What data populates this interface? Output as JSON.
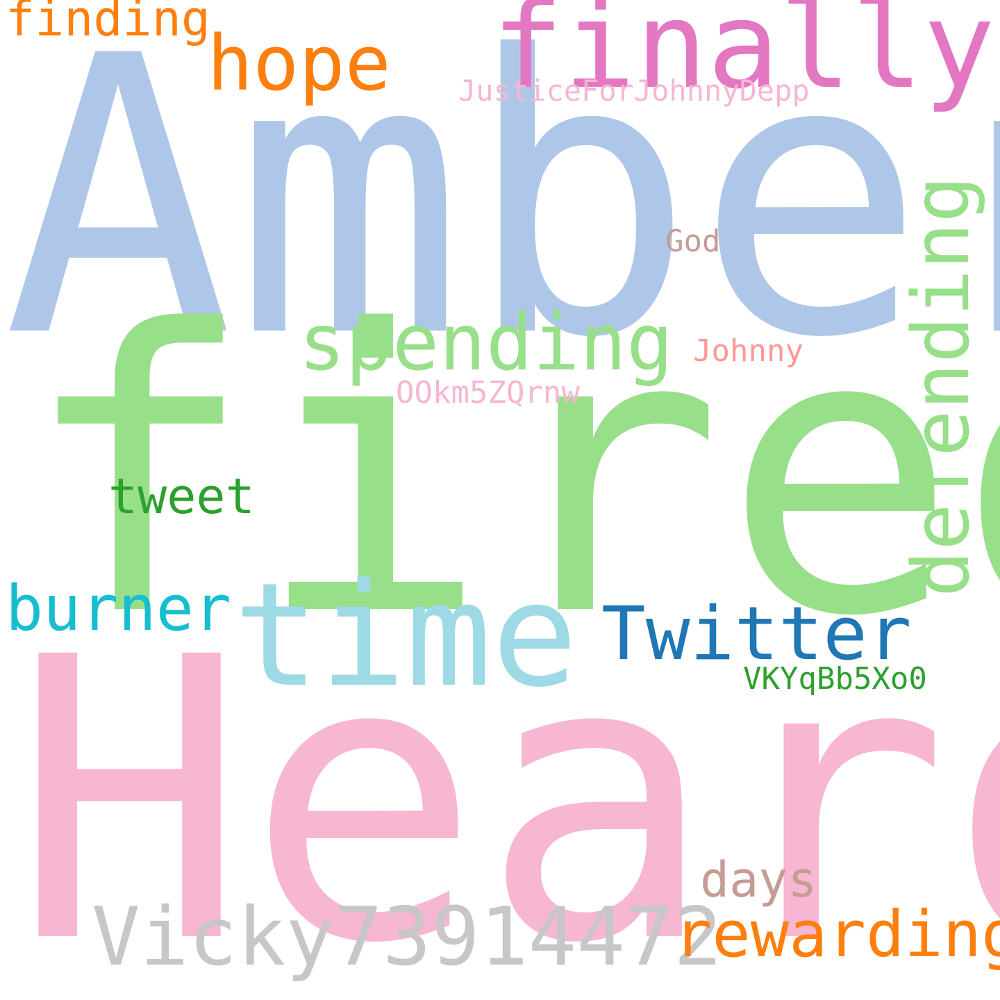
{
  "words": [
    {
      "text": "Amber",
      "color": "#aec7e8"
    },
    {
      "text": "fired",
      "color": "#98df8a"
    },
    {
      "text": "Heard",
      "color": "#f7b6d2"
    },
    {
      "text": "finally",
      "color": "#e377c2"
    },
    {
      "text": "time",
      "color": "#9edae5"
    },
    {
      "text": "Vicky73914472",
      "color": "#c7c7c7"
    },
    {
      "text": "spending",
      "color": "#98df8a"
    },
    {
      "text": "defending",
      "color": "#98df8a"
    },
    {
      "text": "Twitter",
      "color": "#1f77b4"
    },
    {
      "text": "hope",
      "color": "#ff7f0e"
    },
    {
      "text": "rewarding",
      "color": "#ff7f0e"
    },
    {
      "text": "burner",
      "color": "#17becf"
    },
    {
      "text": "finding",
      "color": "#ff7f0e"
    },
    {
      "text": "tweet",
      "color": "#2ca02c"
    },
    {
      "text": "days",
      "color": "#c49c94"
    },
    {
      "text": "JusticeForJohnnyDepp",
      "color": "#f7b6d2"
    },
    {
      "text": "VKYqBb5Xo0",
      "color": "#2ca02c"
    },
    {
      "text": "OOkm5ZQrnw",
      "color": "#f7b6d2"
    },
    {
      "text": "Johnny",
      "color": "#ff9896"
    },
    {
      "text": "God",
      "color": "#c49c94"
    }
  ]
}
